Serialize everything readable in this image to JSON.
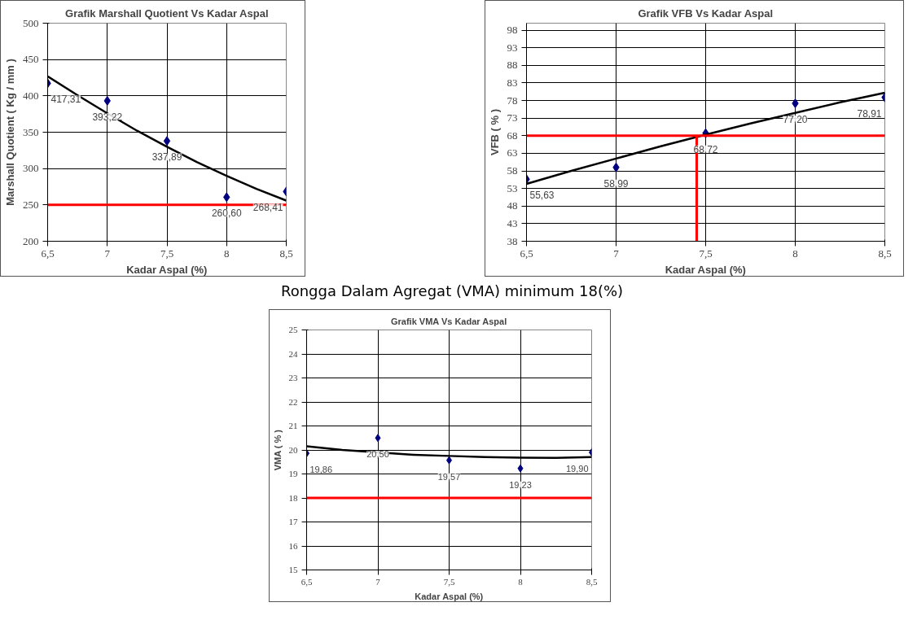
{
  "chart_data": [
    {
      "type": "scatter",
      "title": "Grafik Marshall Quotient Vs Kadar Aspal",
      "xlabel": "Kadar Aspal (%)",
      "ylabel": "Marshall Quotient ( Kg / mm )",
      "xlim": [
        6.5,
        8.5
      ],
      "xticks": [
        {
          "value": 6.5,
          "label": "6,5"
        },
        7,
        {
          "value": 7.5,
          "label": "7,5"
        },
        8,
        {
          "value": 8.5,
          "label": "8,5"
        }
      ],
      "ylim": [
        200,
        500
      ],
      "yticks": [
        200,
        250,
        300,
        350,
        400,
        450,
        500
      ],
      "grid": true,
      "marker": "diamond",
      "series": [
        {
          "color": "#000080",
          "x": [
            6.5,
            7,
            7.5,
            8,
            8.5
          ],
          "values": [
            417.31,
            393.22,
            337.89,
            260.6,
            268.41
          ],
          "value_labels": [
            "417,31",
            "393,22",
            "337,89",
            "260,60",
            "268,41"
          ]
        },
        {
          "type": "line",
          "color": "#000000",
          "marker": "none",
          "x": [
            6.5,
            6.75,
            7,
            7.25,
            7.5,
            7.75,
            8,
            8.25,
            8.5
          ],
          "values": [
            427,
            401,
            376,
            352,
            330,
            309,
            290,
            272,
            256
          ]
        }
      ],
      "ref_lines": [
        {
          "axis": "y",
          "value": 250,
          "color": "#ff0000"
        }
      ]
    },
    {
      "type": "scatter",
      "title": "Grafik VFB Vs Kadar Aspal",
      "xlabel": "Kadar Aspal (%)",
      "ylabel": "VFB ( % )",
      "xlim": [
        6.5,
        8.5
      ],
      "xticks": [
        {
          "value": 6.5,
          "label": "6,5"
        },
        7,
        {
          "value": 7.5,
          "label": "7,5"
        },
        8,
        {
          "value": 8.5,
          "label": "8,5"
        }
      ],
      "ylim": [
        38,
        100
      ],
      "yticks": [
        38,
        43,
        48,
        53,
        58,
        63,
        68,
        73,
        78,
        83,
        88,
        93,
        98
      ],
      "grid": true,
      "marker": "diamond",
      "series": [
        {
          "color": "#000080",
          "x": [
            6.5,
            7,
            7.5,
            8,
            8.5
          ],
          "values": [
            55.63,
            58.99,
            68.72,
            77.2,
            78.91
          ],
          "value_labels": [
            "55,63",
            "58,99",
            "68,72",
            "77,20",
            "78,91"
          ]
        },
        {
          "type": "line",
          "color": "#000000",
          "marker": "none",
          "x": [
            6.5,
            6.75,
            7,
            7.25,
            7.5,
            7.75,
            8,
            8.25,
            8.5
          ],
          "values": [
            54.3,
            58,
            61.5,
            65,
            68.3,
            71.5,
            74.5,
            77.5,
            80.2
          ]
        },
        {
          "type": "line",
          "color": "#ff0000",
          "marker": "none",
          "x": [
            7.45,
            7.45
          ],
          "values": [
            38,
            68
          ]
        }
      ],
      "ref_lines": [
        {
          "axis": "y",
          "value": 68,
          "color": "#ff0000"
        }
      ]
    },
    {
      "type": "scatter",
      "title": "Grafik VMA Vs Kadar Aspal",
      "xlabel": "Kadar Aspal (%)",
      "ylabel": "VMA ( % )",
      "annotations": [
        "Rongga Dalam Agregat (VMA) minimum 18(%)"
      ],
      "xlim": [
        6.5,
        8.5
      ],
      "xticks": [
        {
          "value": 6.5,
          "label": "6,5"
        },
        7,
        {
          "value": 7.5,
          "label": "7,5"
        },
        8,
        {
          "value": 8.5,
          "label": "8,5"
        }
      ],
      "ylim": [
        15,
        25
      ],
      "yticks": [
        15,
        16,
        17,
        18,
        19,
        20,
        21,
        22,
        23,
        24,
        25
      ],
      "grid": true,
      "marker": "diamond",
      "series": [
        {
          "color": "#000080",
          "x": [
            6.5,
            7,
            7.5,
            8,
            8.5
          ],
          "values": [
            19.86,
            20.5,
            19.57,
            19.23,
            19.9
          ],
          "value_labels": [
            "19,86",
            "20,50",
            "19,57",
            "19,23",
            "19,90"
          ]
        },
        {
          "type": "line",
          "color": "#000000",
          "marker": "none",
          "x": [
            6.5,
            6.75,
            7,
            7.25,
            7.5,
            7.75,
            8,
            8.25,
            8.5
          ],
          "values": [
            20.15,
            20.0,
            19.9,
            19.8,
            19.75,
            19.7,
            19.68,
            19.67,
            19.7
          ]
        }
      ],
      "ref_lines": [
        {
          "axis": "y",
          "value": 18,
          "color": "#ff0000"
        }
      ]
    }
  ]
}
